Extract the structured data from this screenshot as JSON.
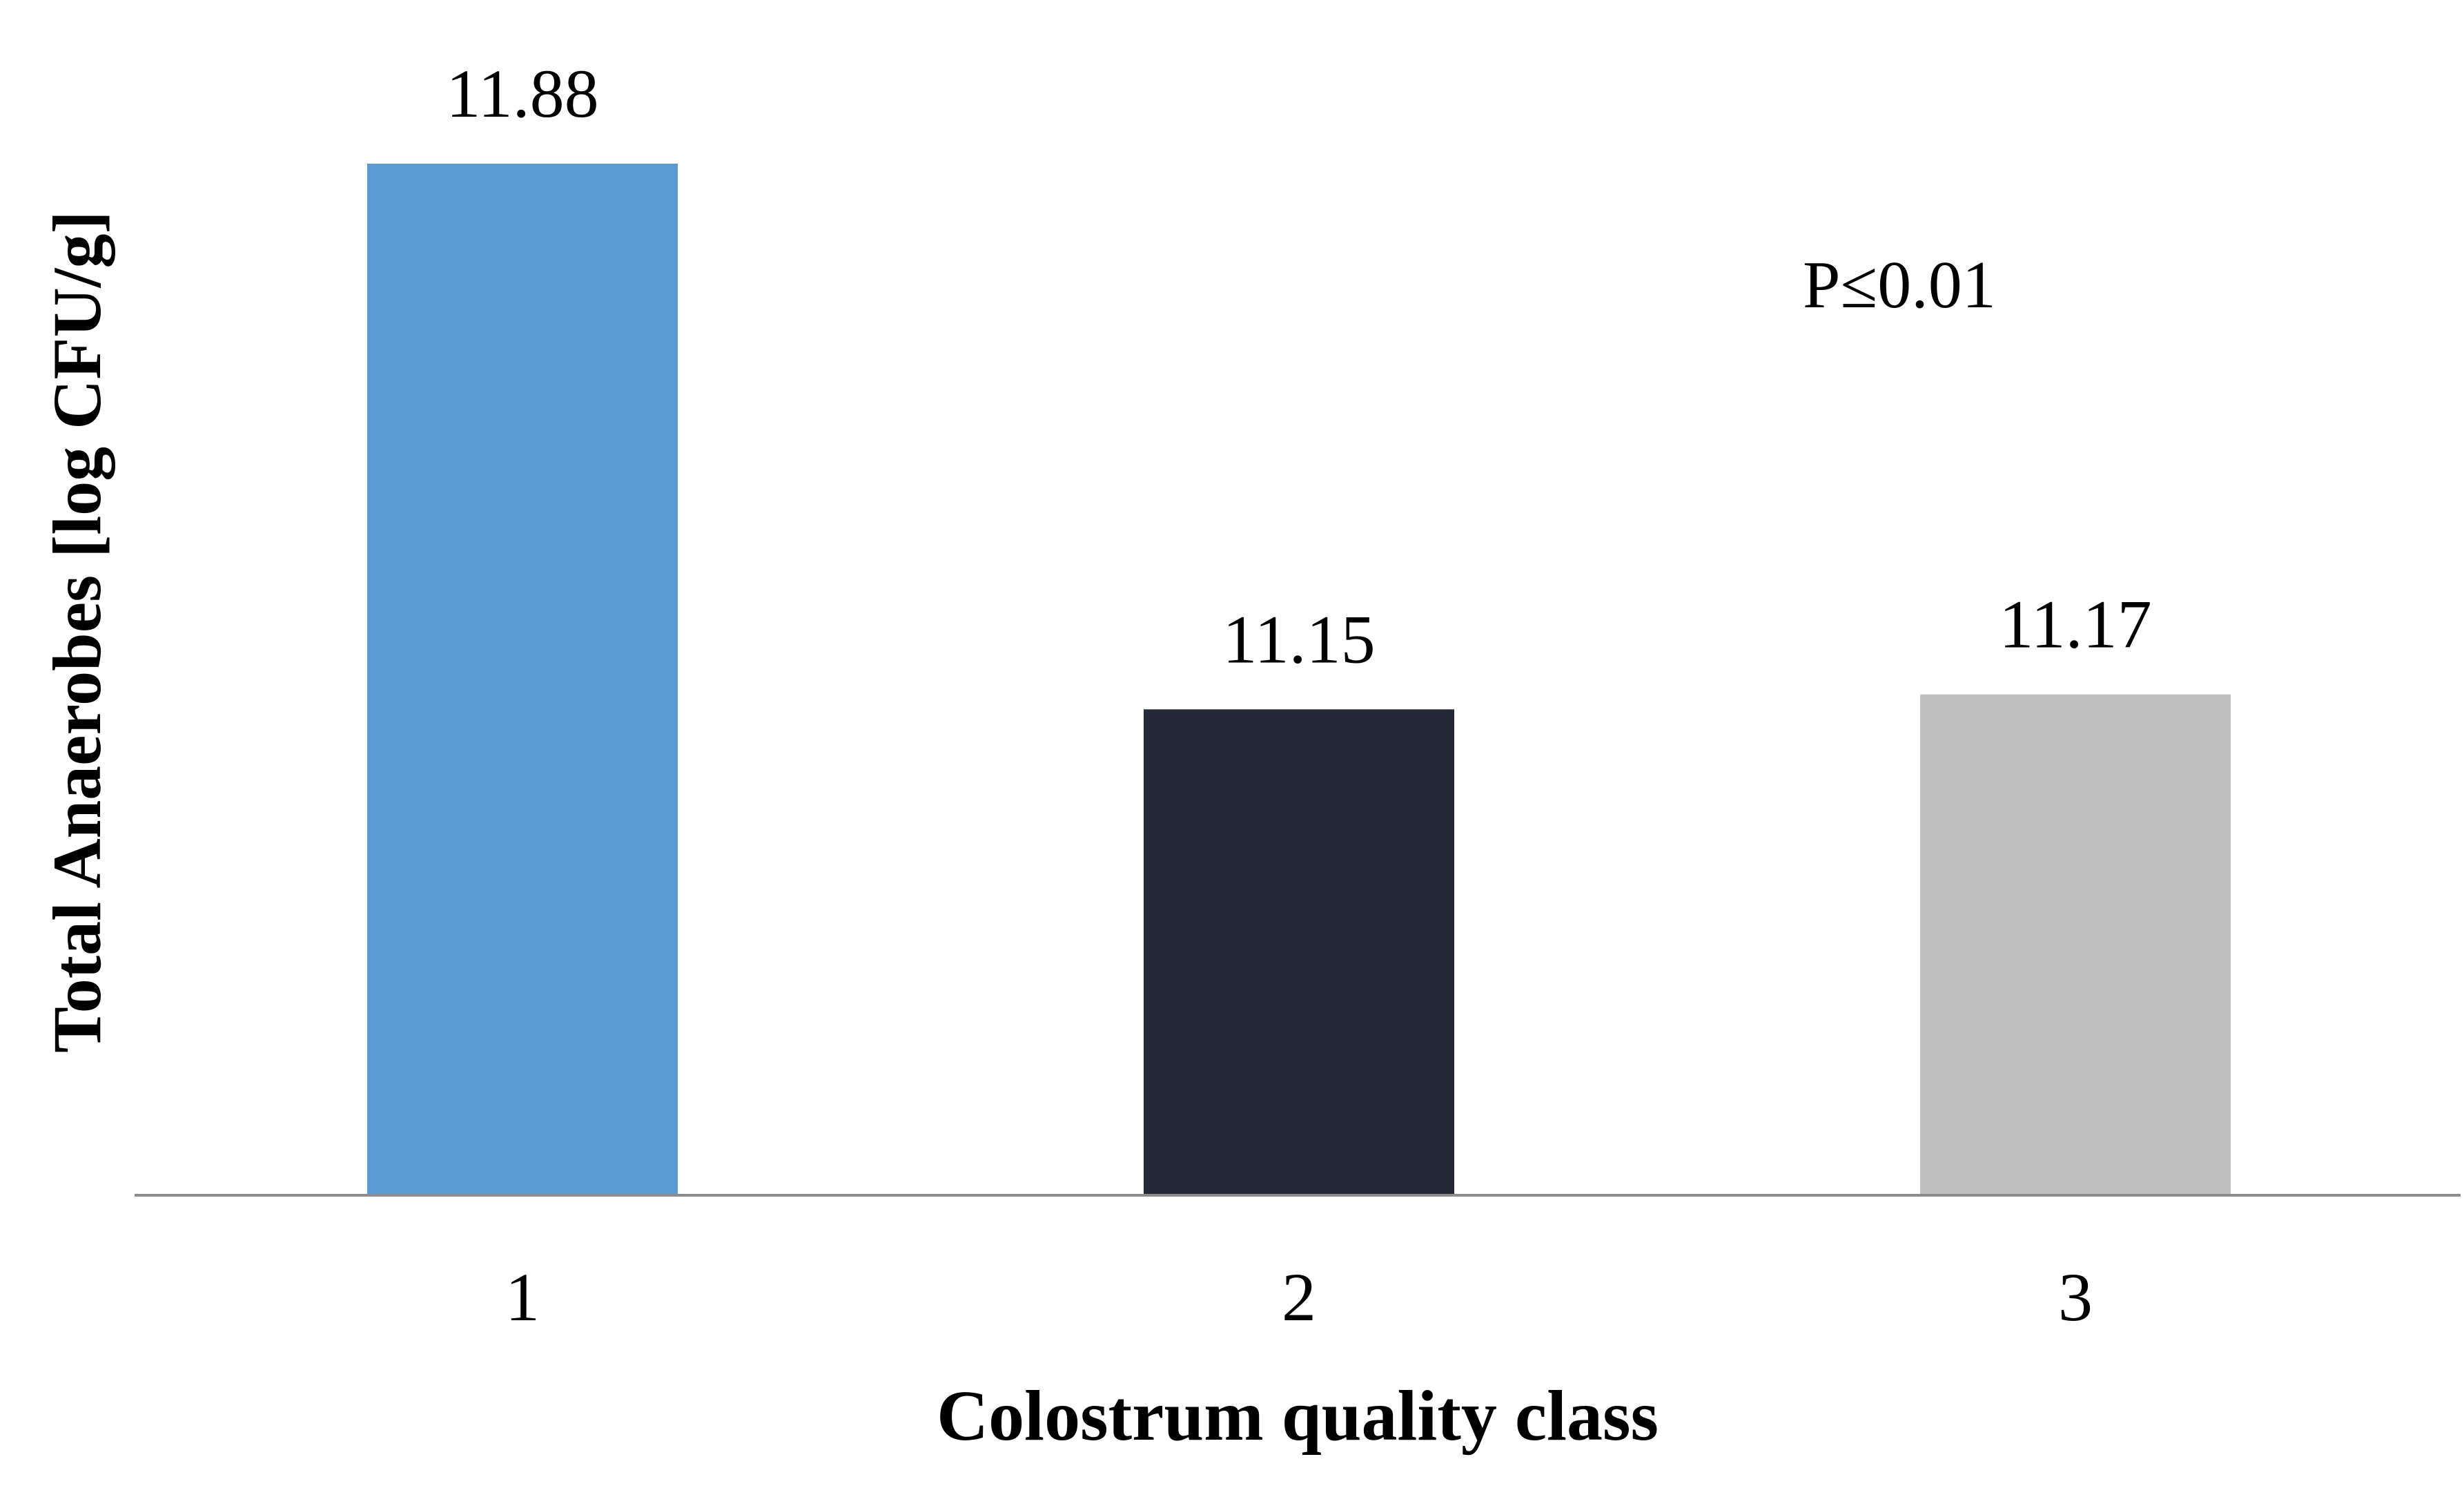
{
  "chart_data": {
    "type": "bar",
    "categories": [
      "1",
      "2",
      "3"
    ],
    "values": [
      11.88,
      11.15,
      11.17
    ],
    "data_labels": [
      "11.88",
      "11.15",
      "11.17"
    ],
    "colors": [
      "#5b9bd5",
      "#242a35",
      "#bfbfbf"
    ],
    "xlabel": "Colostrum quality class",
    "ylabel": "Total Anaerobes [log CFU/g]",
    "ylim": [
      10.5,
      11.9
    ],
    "grid": false,
    "annotations": [
      {
        "text": "P≤0.01"
      }
    ]
  }
}
